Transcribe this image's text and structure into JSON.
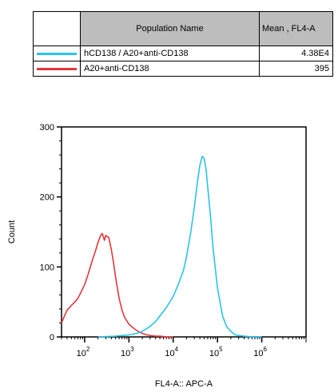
{
  "legend_table": {
    "header_name": "Population Name",
    "header_mean": "Mean , FL4-A",
    "rows": [
      {
        "name": "hCD138 / A20+anti-CD138",
        "mean": "4.38E4",
        "color": "#29c4e8"
      },
      {
        "name": "A20+anti-CD138",
        "mean": "395",
        "color": "#e2383a"
      }
    ]
  },
  "chart_data": {
    "type": "line",
    "title": "",
    "xlabel": "FL4-A:: APC-A",
    "ylabel": "Count",
    "x_scale": "log",
    "xlim": [
      30,
      10000000
    ],
    "ylim": [
      0,
      300
    ],
    "x_ticks": [
      {
        "value": 100,
        "base": "10",
        "exp": "2"
      },
      {
        "value": 1000,
        "base": "10",
        "exp": "3"
      },
      {
        "value": 10000,
        "base": "10",
        "exp": "4"
      },
      {
        "value": 100000,
        "base": "10",
        "exp": "5"
      },
      {
        "value": 1000000,
        "base": "10",
        "exp": "6"
      }
    ],
    "y_ticks": [
      "0",
      "100",
      "200",
      "300"
    ],
    "series": [
      {
        "name": "A20+anti-CD138",
        "color": "#e2383a",
        "x": [
          30,
          35,
          40,
          50,
          60,
          70,
          80,
          100,
          120,
          150,
          180,
          200,
          230,
          250,
          280,
          300,
          350,
          400,
          450,
          500,
          600,
          700,
          800,
          1000,
          1300,
          1600,
          2000,
          2500,
          3000,
          4000,
          5000,
          7000,
          10000
        ],
        "y": [
          20,
          30,
          38,
          45,
          50,
          55,
          62,
          75,
          90,
          110,
          125,
          135,
          145,
          148,
          138,
          145,
          142,
          125,
          105,
          85,
          55,
          38,
          28,
          18,
          12,
          8,
          5,
          3,
          2,
          1,
          1,
          0,
          0
        ]
      },
      {
        "name": "hCD138 / A20+anti-CD138",
        "color": "#29c4e8",
        "x": [
          200,
          500,
          1000,
          1500,
          2000,
          3000,
          4000,
          5000,
          7000,
          10000,
          13000,
          17000,
          20000,
          25000,
          30000,
          35000,
          40000,
          45000,
          50000,
          55000,
          60000,
          70000,
          80000,
          100000,
          130000,
          160000,
          200000,
          250000,
          300000,
          400000,
          600000,
          1000000
        ],
        "y": [
          0,
          1,
          3,
          5,
          8,
          15,
          22,
          30,
          42,
          58,
          75,
          95,
          115,
          150,
          185,
          220,
          245,
          258,
          255,
          240,
          215,
          170,
          125,
          70,
          30,
          15,
          8,
          3,
          2,
          1,
          0,
          0
        ]
      }
    ]
  }
}
